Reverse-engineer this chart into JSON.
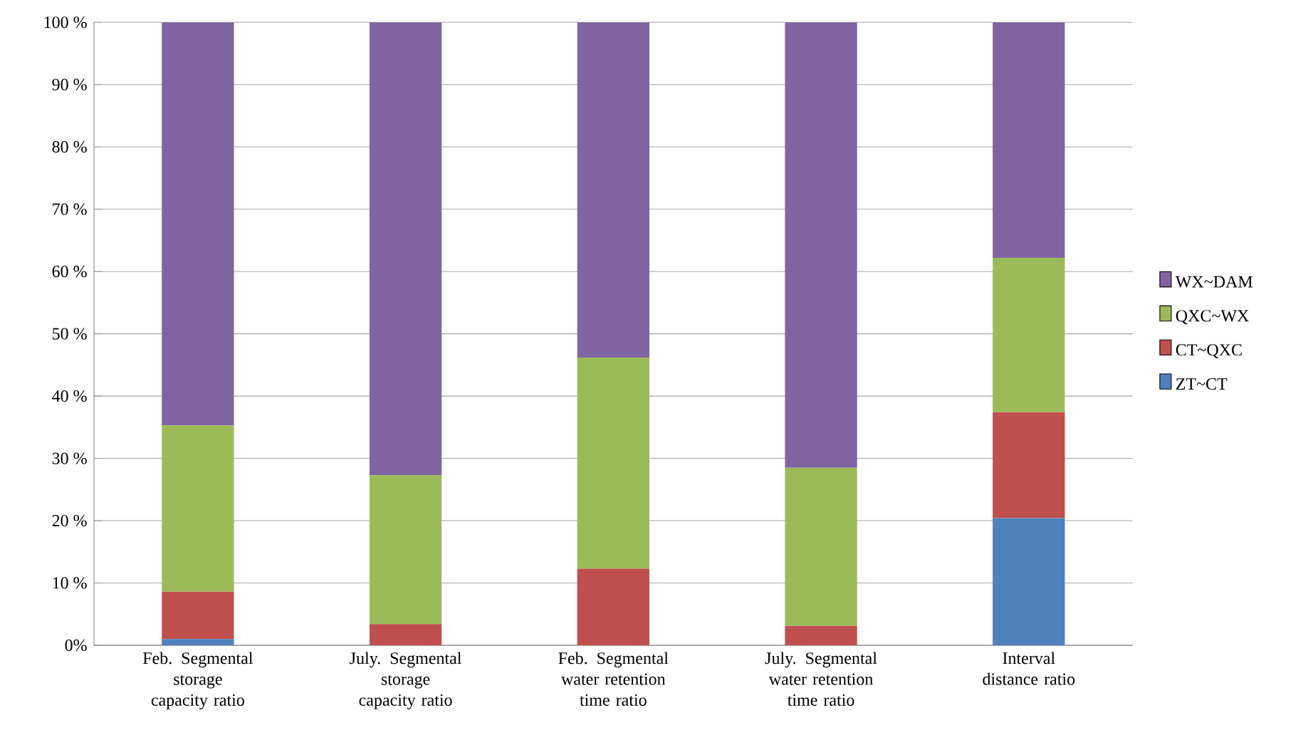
{
  "chart_data": {
    "type": "bar",
    "stacked": true,
    "categories": [
      "Feb. Segmental storage capacity ratio",
      "July. Segmental storage capacity ratio",
      "Feb. Segmental water retention time ratio",
      "July. Segmental water retention time ratio",
      "Interval distance ratio"
    ],
    "series": [
      {
        "name": "ZT~CT",
        "color": "#4f81bd",
        "values": [
          1.0,
          0,
          0,
          0,
          20.4
        ]
      },
      {
        "name": "CT~QXC",
        "color": "#c0504d",
        "values": [
          7.6,
          3.4,
          12.3,
          3.1,
          17.0
        ]
      },
      {
        "name": "QXC~WX",
        "color": "#9bbb59",
        "values": [
          26.7,
          23.9,
          33.9,
          25.4,
          24.8
        ]
      },
      {
        "name": "WX~DAM",
        "color": "#8064a2",
        "values": [
          64.7,
          72.7,
          53.8,
          71.5,
          37.8
        ]
      }
    ],
    "ylim": [
      0,
      100
    ],
    "yticks": [
      {
        "value": 0,
        "label": "0%"
      },
      {
        "value": 10,
        "label": "10 %"
      },
      {
        "value": 20,
        "label": "20 %"
      },
      {
        "value": 30,
        "label": "30 %"
      },
      {
        "value": 40,
        "label": "40 %"
      },
      {
        "value": 50,
        "label": "50 %"
      },
      {
        "value": 60,
        "label": "60 %"
      },
      {
        "value": 70,
        "label": "70 %"
      },
      {
        "value": 80,
        "label": "80 %"
      },
      {
        "value": 90,
        "label": "90 %"
      },
      {
        "value": 100,
        "label": "100 %"
      }
    ],
    "grid": "y",
    "legend": "right"
  }
}
